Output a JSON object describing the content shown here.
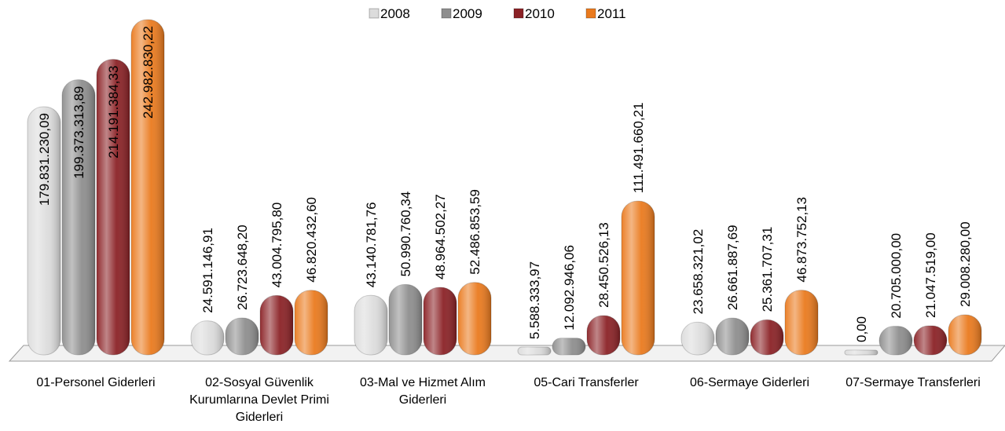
{
  "chart_data": {
    "type": "bar",
    "categories": [
      "01-Personel Giderleri",
      "02-Sosyal Güvenlik Kurumlarına Devlet Primi Giderleri",
      "03-Mal ve Hizmet Alım Giderleri",
      "05-Cari Transferler",
      "06-Sermaye Giderleri",
      "07-Sermaye Transferleri"
    ],
    "series": [
      {
        "name": "2008",
        "color": "#dcdcdc",
        "values": [
          179831230.09,
          24591146.91,
          43140781.76,
          5588333.97,
          23658321.02,
          0
        ],
        "value_labels": [
          "179.831.230,09",
          "24.591.146,91",
          "43.140.781,76",
          "5.588.333,97",
          "23.658.321,02",
          "0,00"
        ]
      },
      {
        "name": "2009",
        "color": "#8e8e8e",
        "values": [
          199373313.89,
          26723648.2,
          50990760.34,
          12092946.06,
          26661887.69,
          20705000.0
        ],
        "value_labels": [
          "199.373.313,89",
          "26.723.648,20",
          "50.990.760,34",
          "12.092.946,06",
          "26.661.887,69",
          "20.705.000,00"
        ]
      },
      {
        "name": "2010",
        "color": "#8b2226",
        "values": [
          214191384.33,
          43004795.8,
          48964502.27,
          28450526.13,
          25361707.31,
          21047519.0
        ],
        "value_labels": [
          "214.191.384,33",
          "43.004.795,80",
          "48.964.502,27",
          "28.450.526,13",
          "25.361.707,31",
          "21.047.519,00"
        ]
      },
      {
        "name": "2011",
        "color": "#ea7a1e",
        "values": [
          242982830.22,
          46820432.6,
          52486853.59,
          111491660.21,
          46873752.13,
          29008280.0
        ],
        "value_labels": [
          "242.982.830,22",
          "46.820.432,60",
          "52.486.853,59",
          "111.491.660,21",
          "46.873.752,13",
          "29.008.280,00"
        ]
      }
    ]
  }
}
